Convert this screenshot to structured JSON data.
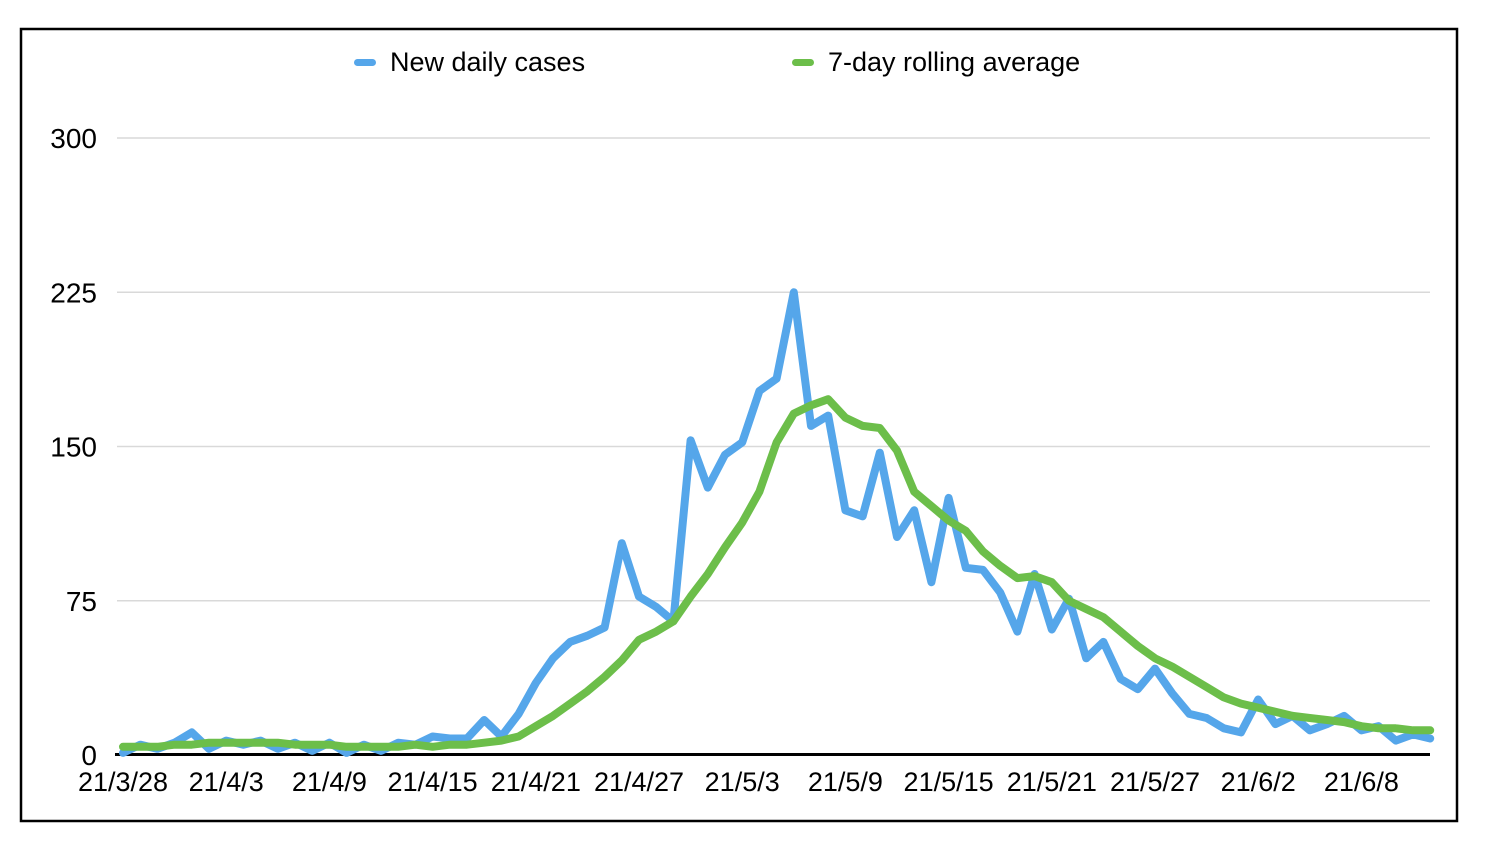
{
  "chart_data": {
    "type": "line",
    "title": "",
    "xlabel": "",
    "ylabel": "",
    "x": [
      "21/3/28",
      "21/3/29",
      "21/3/30",
      "21/3/31",
      "21/4/1",
      "21/4/2",
      "21/4/3",
      "21/4/4",
      "21/4/5",
      "21/4/6",
      "21/4/7",
      "21/4/8",
      "21/4/9",
      "21/4/10",
      "21/4/11",
      "21/4/12",
      "21/4/13",
      "21/4/14",
      "21/4/15",
      "21/4/16",
      "21/4/17",
      "21/4/18",
      "21/4/19",
      "21/4/20",
      "21/4/21",
      "21/4/22",
      "21/4/23",
      "21/4/24",
      "21/4/25",
      "21/4/26",
      "21/4/27",
      "21/4/28",
      "21/4/29",
      "21/4/30",
      "21/5/1",
      "21/5/2",
      "21/5/3",
      "21/5/4",
      "21/5/5",
      "21/5/6",
      "21/5/7",
      "21/5/8",
      "21/5/9",
      "21/5/10",
      "21/5/11",
      "21/5/12",
      "21/5/13",
      "21/5/14",
      "21/5/15",
      "21/5/16",
      "21/5/17",
      "21/5/18",
      "21/5/19",
      "21/5/20",
      "21/5/21",
      "21/5/22",
      "21/5/23",
      "21/5/24",
      "21/5/25",
      "21/5/26",
      "21/5/27",
      "21/5/28",
      "21/5/29",
      "21/5/30",
      "21/5/31",
      "21/6/1",
      "21/6/2",
      "21/6/3",
      "21/6/4",
      "21/6/5",
      "21/6/6",
      "21/6/7",
      "21/6/8",
      "21/6/9",
      "21/6/10",
      "21/6/11",
      "21/6/12"
    ],
    "series": [
      {
        "name": "New daily cases",
        "color": "#55a6ea",
        "values": [
          1,
          5,
          3,
          6,
          11,
          3,
          7,
          5,
          7,
          3,
          6,
          2,
          6,
          1,
          5,
          2,
          6,
          5,
          9,
          8,
          8,
          17,
          9,
          20,
          35,
          47,
          55,
          58,
          62,
          103,
          77,
          72,
          65,
          153,
          130,
          146,
          152,
          177,
          183,
          225,
          160,
          165,
          119,
          116,
          147,
          106,
          119,
          84,
          125,
          91,
          90,
          79,
          60,
          88,
          61,
          76,
          47,
          55,
          37,
          32,
          42,
          30,
          20,
          18,
          13,
          11,
          27,
          15,
          19,
          12,
          15,
          19,
          12,
          14,
          7,
          10,
          8
        ]
      },
      {
        "name": "7-day rolling average",
        "color": "#6cbe4a",
        "values": [
          4,
          4,
          4,
          5,
          5,
          6,
          6,
          6,
          6,
          6,
          5,
          5,
          5,
          4,
          4,
          4,
          4,
          5,
          4,
          5,
          5,
          6,
          7,
          9,
          14,
          19,
          25,
          31,
          38,
          46,
          56,
          60,
          65,
          77,
          88,
          101,
          113,
          128,
          152,
          166,
          170,
          173,
          164,
          160,
          159,
          148,
          128,
          121,
          114,
          109,
          99,
          92,
          86,
          87,
          84,
          75,
          71,
          67,
          60,
          53,
          47,
          43,
          38,
          33,
          28,
          25,
          23,
          21,
          19,
          18,
          17,
          16,
          14,
          13,
          13,
          12,
          12
        ]
      }
    ],
    "y_ticks": [
      0,
      75,
      150,
      225,
      300
    ],
    "ylim": [
      0,
      300
    ],
    "x_tick_labels": [
      "21/3/28",
      "21/4/3",
      "21/4/9",
      "21/4/15",
      "21/4/21",
      "21/4/27",
      "21/5/3",
      "21/5/9",
      "21/5/15",
      "21/5/21",
      "21/5/27",
      "21/6/2",
      "21/6/8"
    ],
    "x_tick_step": 6,
    "grid": "horizontal",
    "legend_position": "top",
    "gridline_color": "#d9d9d9",
    "axis_color": "#000000",
    "border_color": "#000000",
    "text_color": "#000000"
  }
}
